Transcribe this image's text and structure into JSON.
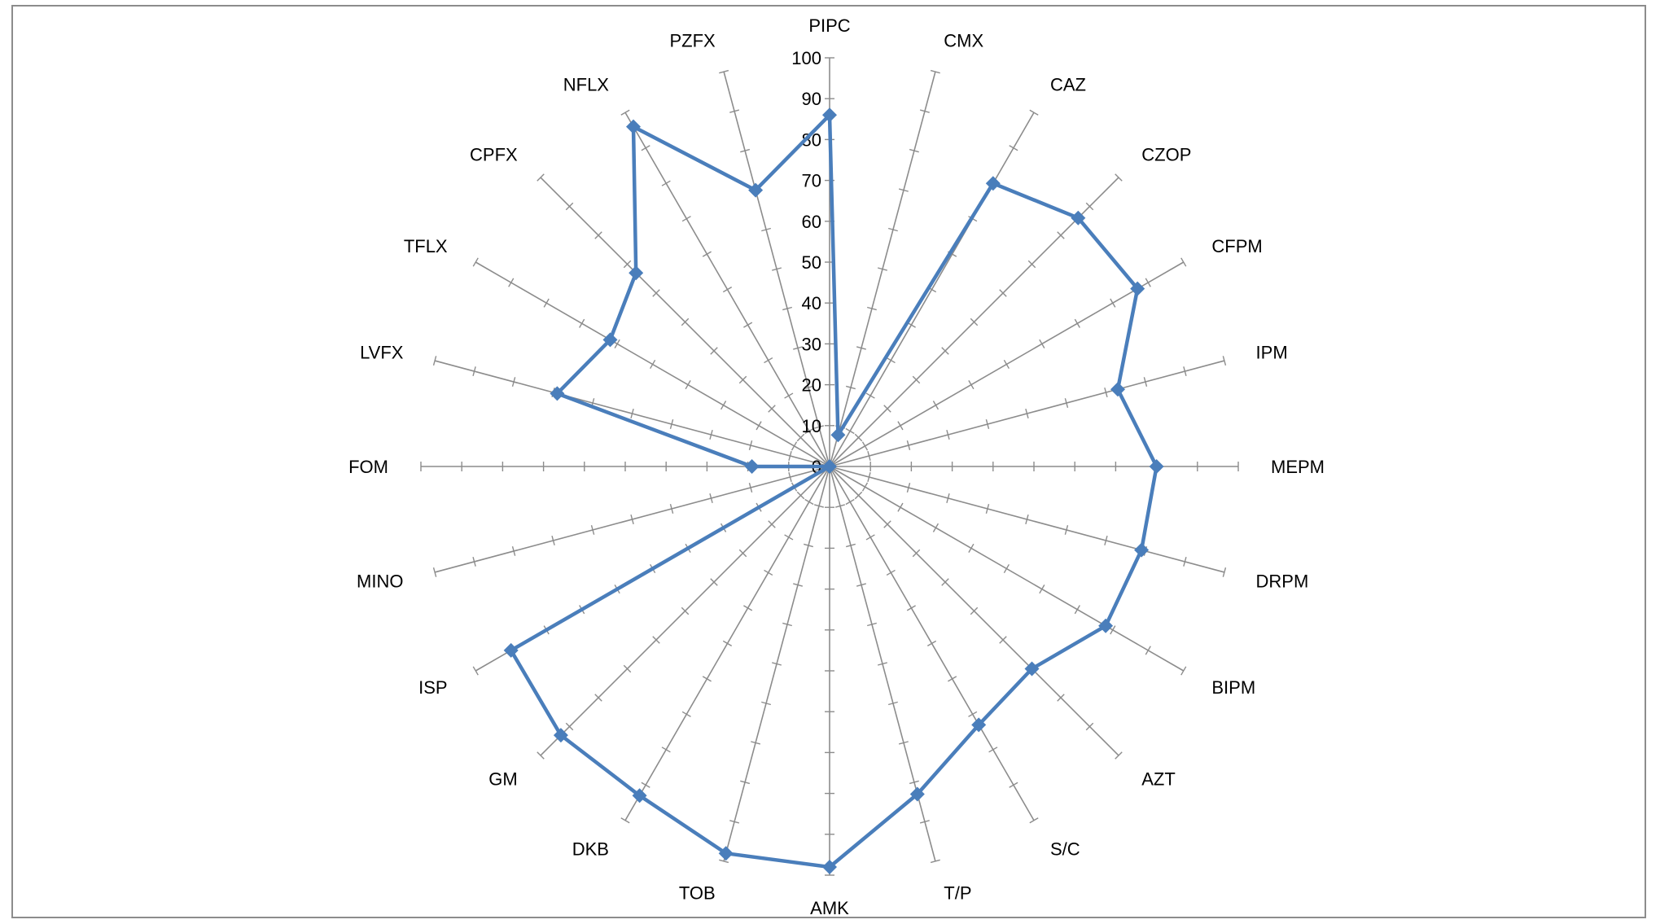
{
  "chart_data": {
    "type": "radar",
    "categories": [
      "PIPC",
      "CMX",
      "CAZ",
      "CZOP",
      "CFPM",
      "IPM",
      "MEPM",
      "DRPM",
      "BIPM",
      "AZT",
      "S/C",
      "T/P",
      "AMK",
      "TOB",
      "DKB",
      "GM",
      "ISP",
      "MINO",
      "FOM",
      "LVFX",
      "TFLX",
      "CPFX",
      "NFLX",
      "PZFX"
    ],
    "series": [
      {
        "values": [
          86,
          8,
          80,
          86,
          87,
          73,
          80,
          79,
          78,
          70,
          73,
          83,
          98,
          98,
          93,
          93,
          90,
          0,
          19,
          69,
          62,
          67,
          96,
          70
        ],
        "color": "#4a7ebb"
      }
    ],
    "ticks": [
      "0",
      "10",
      "20",
      "30",
      "40",
      "50",
      "60",
      "70",
      "80",
      "90",
      "100"
    ],
    "rlim": [
      0,
      100
    ],
    "axis_color": "#8c8c8c",
    "legend": "none"
  }
}
